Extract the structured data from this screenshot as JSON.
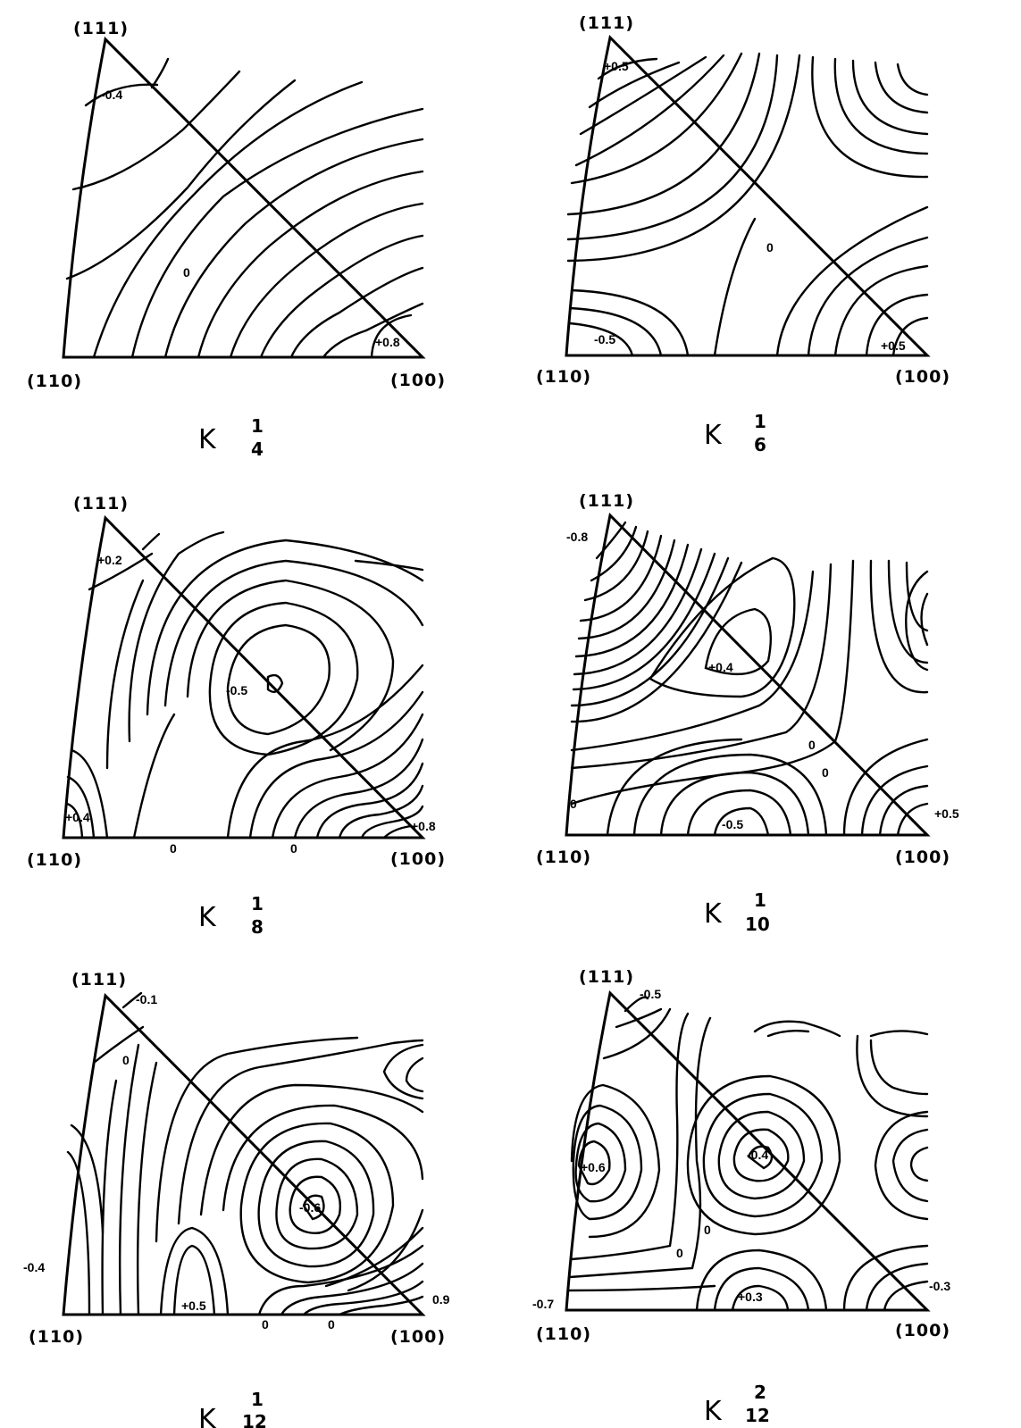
{
  "panels": [
    {
      "corner_111": "(111)",
      "corner_110": "(110)",
      "corner_100": "(100)",
      "kernel_letter": "K",
      "kernel_sup": "1",
      "kernel_sub": "4",
      "values": [
        "-0.4",
        "0",
        "+0.8"
      ]
    },
    {
      "corner_111": "(111)",
      "corner_110": "(110)",
      "corner_100": "(100)",
      "kernel_letter": "K",
      "kernel_sup": "1",
      "kernel_sub": "6",
      "values": [
        "+0.5",
        "0",
        "-0.5",
        "+0.5"
      ]
    },
    {
      "corner_111": "(111)",
      "corner_110": "(110)",
      "corner_100": "(100)",
      "kernel_letter": "K",
      "kernel_sup": "1",
      "kernel_sub": "8",
      "values": [
        "+0.2",
        "-0.5",
        "+0.4",
        "+0.8",
        "0",
        "0"
      ]
    },
    {
      "corner_111": "(111)",
      "corner_110": "(110)",
      "corner_100": "(100)",
      "kernel_letter": "K",
      "kernel_sup": "1",
      "kernel_sub": "10",
      "values": [
        "-0.8",
        "+0.4",
        "0",
        "0",
        "0",
        "-0.5",
        "+0.5"
      ]
    },
    {
      "corner_111": "(111)",
      "corner_110": "(110)",
      "corner_100": "(100)",
      "kernel_letter": "K",
      "kernel_sup": "1",
      "kernel_sub": "12",
      "values": [
        "-0.1",
        "0",
        "-0.6",
        "-0.4",
        "+0.5",
        "0",
        "0",
        "0.9"
      ]
    },
    {
      "corner_111": "(111)",
      "corner_110": "(110)",
      "corner_100": "(100)",
      "kernel_letter": "K",
      "kernel_sup": "2",
      "kernel_sub": "12",
      "values": [
        "-0.5",
        "+0.6",
        "-0.4",
        "0",
        "0",
        "+0.3",
        "-0.7",
        "-0.3"
      ]
    }
  ]
}
